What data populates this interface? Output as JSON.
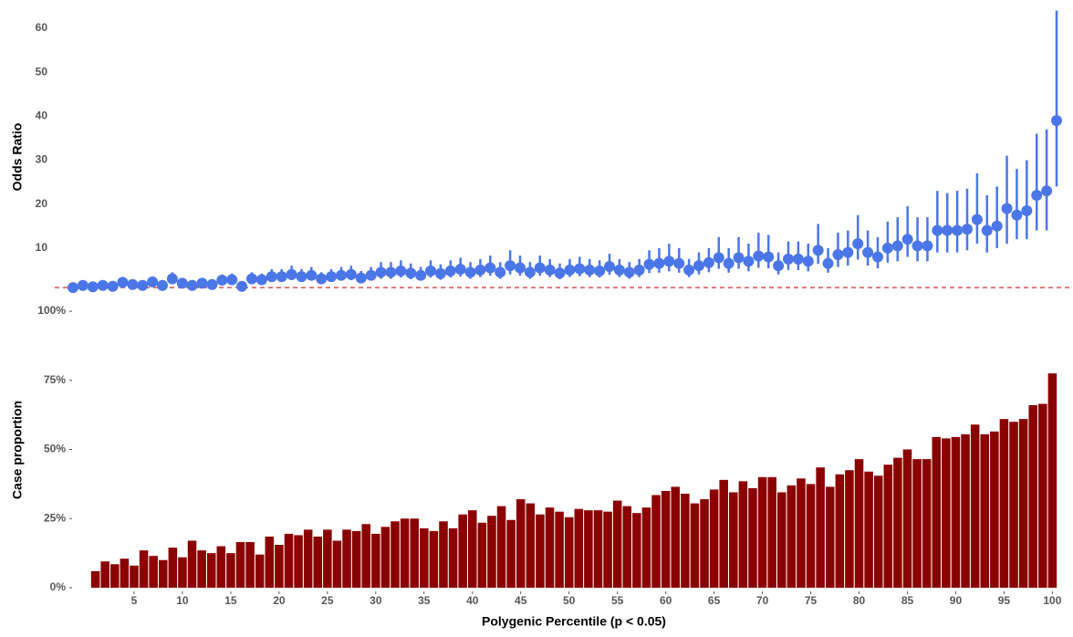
{
  "chart_data": [
    {
      "type": "scatter",
      "y_label": "Odds Ratio",
      "color": "#4a76e8",
      "hline": 1,
      "hline_color": "#d9534f",
      "x": [
        1,
        2,
        3,
        4,
        5,
        6,
        7,
        8,
        9,
        10,
        11,
        12,
        13,
        14,
        15,
        16,
        17,
        18,
        19,
        20,
        21,
        22,
        23,
        24,
        25,
        26,
        27,
        28,
        29,
        30,
        31,
        32,
        33,
        34,
        35,
        36,
        37,
        38,
        39,
        40,
        41,
        42,
        43,
        44,
        45,
        46,
        47,
        48,
        49,
        50,
        51,
        52,
        53,
        54,
        55,
        56,
        57,
        58,
        59,
        60,
        61,
        62,
        63,
        64,
        65,
        66,
        67,
        68,
        69,
        70,
        71,
        72,
        73,
        74,
        75,
        76,
        77,
        78,
        79,
        80,
        81,
        82,
        83,
        84,
        85,
        86,
        87,
        88,
        89,
        90,
        91,
        92,
        93,
        94,
        95,
        96,
        97,
        98,
        99,
        100
      ],
      "values": [
        1,
        1.5,
        1.2,
        1.5,
        1.3,
        2.2,
        1.7,
        1.5,
        2.3,
        1.5,
        3,
        2,
        1.5,
        2,
        1.7,
        2.7,
        2.8,
        1.3,
        3,
        2.8,
        3.5,
        3.5,
        4,
        3.5,
        3.8,
        3,
        3.5,
        3.8,
        4,
        3.2,
        3.8,
        4.5,
        4.5,
        4.8,
        4.3,
        3.8,
        4.8,
        4.2,
        4.8,
        5.2,
        4.5,
        5,
        5.5,
        4.5,
        6,
        5.5,
        4.5,
        5.5,
        5,
        4.3,
        5,
        5.3,
        5,
        4.8,
        5.8,
        5,
        4.5,
        5,
        6.3,
        6.5,
        7,
        6.5,
        5,
        6,
        6.7,
        7.8,
        6.5,
        7.8,
        7,
        8.2,
        8,
        6,
        7.5,
        7.5,
        7,
        9.5,
        6.5,
        8.5,
        9,
        11,
        9,
        8,
        10,
        10.5,
        12,
        10.5,
        10.5,
        14,
        14,
        14,
        14.3,
        16.5,
        14,
        15,
        19,
        17.5,
        18.5,
        22,
        23,
        39
      ],
      "lower": [
        0.8,
        1,
        0.8,
        1,
        0.9,
        1.5,
        1.1,
        1,
        1.5,
        1,
        2,
        1.3,
        1,
        1.3,
        1.1,
        1.8,
        1.9,
        0.9,
        2,
        1.9,
        2.4,
        2.4,
        2.7,
        2.4,
        2.6,
        2,
        2.4,
        2.6,
        2.7,
        2.2,
        2.6,
        3,
        3,
        3.3,
        2.9,
        2.6,
        3.3,
        2.8,
        3.3,
        3.5,
        3,
        3.4,
        3.7,
        3,
        4,
        3.7,
        3,
        3.7,
        3.4,
        2.9,
        3.4,
        3.6,
        3.4,
        3.3,
        3.9,
        3.4,
        3,
        3.4,
        4.3,
        4.4,
        4.7,
        4.4,
        3.4,
        4,
        4.5,
        5.3,
        4.4,
        5.3,
        4.7,
        5.5,
        5.4,
        4,
        5,
        5,
        4.7,
        6.4,
        4.4,
        5.7,
        6,
        7.4,
        6,
        5.4,
        6.7,
        7,
        8,
        7,
        7,
        9,
        9,
        9,
        9.5,
        11,
        9,
        10,
        11,
        12,
        12,
        14,
        14,
        24
      ],
      "upper": [
        1.6,
        2.2,
        1.8,
        2.2,
        1.9,
        3.3,
        2.5,
        2.2,
        3.5,
        2.2,
        4.5,
        3,
        2.2,
        3,
        2.5,
        4,
        4.2,
        2,
        4.5,
        4.2,
        5.2,
        5.2,
        6,
        5.2,
        5.7,
        4.5,
        5.2,
        5.7,
        6,
        4.8,
        5.7,
        6.8,
        6.8,
        7.2,
        6.5,
        5.7,
        7.2,
        6.3,
        7.2,
        7.8,
        6.8,
        7.5,
        8.3,
        6.8,
        9.5,
        8.3,
        6.8,
        8.3,
        7.5,
        6.5,
        7.5,
        8,
        7.5,
        7.2,
        8.7,
        7.5,
        6.8,
        7.5,
        9.5,
        10,
        11,
        10,
        7.5,
        9,
        10,
        12.5,
        10,
        12.5,
        11,
        13.5,
        13,
        9,
        11.5,
        11.5,
        11,
        15.5,
        10,
        13.5,
        14,
        17.5,
        14,
        12.5,
        16,
        17,
        19.5,
        17,
        17,
        23,
        22.5,
        23,
        23.5,
        27,
        22,
        24,
        31,
        28,
        30,
        36,
        37,
        64
      ],
      "xlim": [
        1,
        100
      ],
      "ylim": [
        0,
        66
      ],
      "yticks": [
        10,
        20,
        30,
        40,
        50,
        60
      ]
    },
    {
      "type": "bar",
      "y_label": "Case proportion",
      "x_label": "Polygenic Percentile (p < 0.05)",
      "color": "#8b0000",
      "x": [
        1,
        2,
        3,
        4,
        5,
        6,
        7,
        8,
        9,
        10,
        11,
        12,
        13,
        14,
        15,
        16,
        17,
        18,
        19,
        20,
        21,
        22,
        23,
        24,
        25,
        26,
        27,
        28,
        29,
        30,
        31,
        32,
        33,
        34,
        35,
        36,
        37,
        38,
        39,
        40,
        41,
        42,
        43,
        44,
        45,
        46,
        47,
        48,
        49,
        50,
        51,
        52,
        53,
        54,
        55,
        56,
        57,
        58,
        59,
        60,
        61,
        62,
        63,
        64,
        65,
        66,
        67,
        68,
        69,
        70,
        71,
        72,
        73,
        74,
        75,
        76,
        77,
        78,
        79,
        80,
        81,
        82,
        83,
        84,
        85,
        86,
        87,
        88,
        89,
        90,
        91,
        92,
        93,
        94,
        95,
        96,
        97,
        98,
        99,
        100
      ],
      "values": [
        6,
        9.5,
        8.5,
        10.5,
        8,
        13.5,
        11.5,
        10,
        14.5,
        11,
        17,
        13.5,
        12.5,
        15,
        12.5,
        16.5,
        16.5,
        12,
        18.5,
        15.5,
        19.5,
        19,
        21,
        18.5,
        21,
        17,
        21,
        20.5,
        23,
        19.5,
        22,
        24,
        25,
        25,
        21.5,
        20.5,
        24,
        21.5,
        26.5,
        28,
        23.5,
        26,
        29.5,
        24.5,
        32,
        30.5,
        26.5,
        29,
        27.5,
        25.5,
        28.5,
        28,
        28,
        27.5,
        31.5,
        29.5,
        27,
        29,
        33.5,
        35,
        36.5,
        34,
        30.5,
        32,
        35.5,
        39,
        34.5,
        38.5,
        36,
        40,
        40,
        34.5,
        37,
        39.5,
        37.5,
        43.5,
        36.5,
        41,
        42.5,
        46.5,
        42,
        40.5,
        44.5,
        47,
        50,
        46.5,
        46.5,
        54.5,
        54,
        54.5,
        55.5,
        59,
        55.5,
        56.5,
        61,
        60,
        61,
        66,
        66.5,
        77.5
      ],
      "xlim": [
        0,
        101
      ],
      "ylim": [
        0,
        100
      ],
      "yticks": [
        {
          "value": 0,
          "label": "0%"
        },
        {
          "value": 25,
          "label": "25%"
        },
        {
          "value": 50,
          "label": "50%"
        },
        {
          "value": 75,
          "label": "75%"
        },
        {
          "value": 100,
          "label": "100%"
        }
      ],
      "xticks": [
        5,
        10,
        15,
        20,
        25,
        30,
        35,
        40,
        45,
        50,
        55,
        60,
        65,
        70,
        75,
        80,
        85,
        90,
        95,
        100
      ]
    }
  ]
}
